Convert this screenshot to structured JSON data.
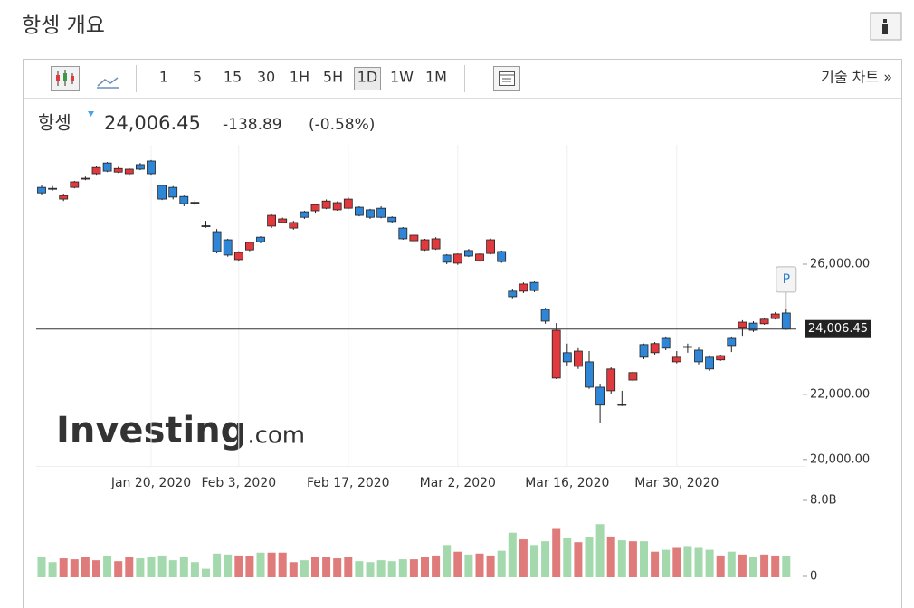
{
  "page": {
    "title": "항셍 개요",
    "toolbar": {
      "intervals": [
        "1",
        "5",
        "15",
        "30",
        "1H",
        "5H",
        "1D",
        "1W",
        "1M"
      ],
      "selected_interval": "1D",
      "tech_chart_link": "기술 차트 »"
    },
    "header": {
      "name": "항셍",
      "change": "-138.89",
      "change_percent": "(-0.58%)"
    },
    "watermark": {
      "brand": "Investing",
      "suffix": ".com"
    },
    "marker": "P"
  },
  "chart_data": {
    "type": "candlestick",
    "categories": [
      null,
      null,
      null,
      null,
      null,
      null,
      null,
      null,
      null,
      null,
      "Jan 20, 2020",
      null,
      null,
      null,
      null,
      null,
      null,
      null,
      "Feb 3, 2020",
      null,
      null,
      null,
      null,
      null,
      null,
      null,
      null,
      null,
      "Feb 17, 2020",
      null,
      null,
      null,
      null,
      null,
      null,
      null,
      null,
      null,
      "Mar 2, 2020",
      null,
      null,
      null,
      null,
      null,
      null,
      null,
      null,
      null,
      "Mar 16, 2020",
      null,
      null,
      null,
      null,
      null,
      null,
      null,
      null,
      null,
      "Mar 30, 2020",
      null,
      null,
      null,
      null,
      null,
      null,
      null,
      null,
      null,
      null
    ],
    "open": [
      28360,
      28330,
      28000,
      28360,
      28620,
      28780,
      29110,
      28830,
      28780,
      29060,
      29170,
      28420,
      28360,
      28080,
      27900,
      27180,
      27000,
      26750,
      26140,
      26440,
      26830,
      27170,
      27280,
      27110,
      27610,
      27640,
      27720,
      27670,
      27720,
      27750,
      27670,
      27720,
      27440,
      27110,
      26720,
      26440,
      26470,
      26280,
      26030,
      26420,
      26110,
      26330,
      26390,
      25170,
      25170,
      25440,
      24610,
      22500,
      23280,
      22860,
      23000,
      22220,
      22110,
      21690,
      22440,
      23530,
      23280,
      23720,
      23000,
      23470,
      23360,
      23140,
      23060,
      23720,
      24060,
      24190,
      24170,
      24330,
      24500
    ],
    "high": [
      28420,
      28400,
      28170,
      28560,
      28690,
      29030,
      29140,
      28990,
      28950,
      29110,
      29200,
      28440,
      28400,
      28110,
      27990,
      27330,
      27080,
      26780,
      26400,
      26690,
      26860,
      27560,
      27430,
      27330,
      27640,
      27860,
      27990,
      27930,
      28060,
      27780,
      27700,
      27780,
      27470,
      27140,
      26920,
      26780,
      26830,
      26310,
      26330,
      26470,
      26330,
      26790,
      26420,
      25250,
      25440,
      25470,
      24660,
      24190,
      23560,
      23420,
      23330,
      22330,
      22830,
      22110,
      22720,
      23560,
      23610,
      23780,
      23330,
      23560,
      23440,
      23200,
      23220,
      23780,
      24280,
      24250,
      24360,
      24530,
      24640
    ],
    "low": [
      28140,
      28260,
      27940,
      28330,
      28580,
      28750,
      28830,
      28800,
      28740,
      28890,
      28750,
      27970,
      27990,
      27780,
      27800,
      27120,
      26330,
      26230,
      26080,
      26400,
      26640,
      27110,
      27250,
      27060,
      27390,
      27580,
      27690,
      27640,
      27690,
      27470,
      27390,
      27410,
      27250,
      26750,
      26690,
      26410,
      26440,
      26000,
      25980,
      26220,
      26080,
      26300,
      26040,
      24950,
      25110,
      25140,
      24170,
      22470,
      22890,
      22780,
      22170,
      21110,
      22000,
      21640,
      22390,
      23080,
      23220,
      23360,
      22950,
      23280,
      22920,
      22720,
      23030,
      23300,
      23800,
      23920,
      24140,
      24300,
      23980
    ],
    "close": [
      28190,
      28320,
      28110,
      28530,
      28640,
      28970,
      28860,
      28940,
      28920,
      28920,
      28780,
      28000,
      28060,
      27860,
      27880,
      27160,
      26390,
      26280,
      26360,
      26670,
      26690,
      27500,
      27390,
      27280,
      27440,
      27830,
      27940,
      27890,
      28000,
      27500,
      27440,
      27440,
      27310,
      26780,
      26890,
      26750,
      26780,
      26060,
      26310,
      26250,
      26310,
      26750,
      26080,
      25000,
      25390,
      25190,
      24250,
      23970,
      23000,
      23330,
      22220,
      21670,
      22780,
      21670,
      22670,
      23140,
      23560,
      23420,
      23140,
      23450,
      23000,
      22780,
      23190,
      23500,
      24220,
      23970,
      24310,
      24470,
      24006.45
    ],
    "up_color": "#e03a3e",
    "down_color": "#2f86d6",
    "ylim": [
      19800,
      29670
    ],
    "yticks": [
      {
        "value": 26000,
        "label": "26,000.00"
      },
      {
        "value": 22000,
        "label": "22,000.00"
      },
      {
        "value": 20000,
        "label": "20,000.00"
      }
    ],
    "current_price": {
      "value": 24006.45,
      "label": "24,006.45"
    },
    "grid": true,
    "volume": {
      "values": [
        2.0,
        1.5,
        1.9,
        1.8,
        2.0,
        1.7,
        2.1,
        1.6,
        2.0,
        1.9,
        2.0,
        2.2,
        1.7,
        2.0,
        1.5,
        0.8,
        2.4,
        2.3,
        2.2,
        2.1,
        2.5,
        2.5,
        2.5,
        1.5,
        1.7,
        2.0,
        2.0,
        1.9,
        2.0,
        1.6,
        1.5,
        1.7,
        1.6,
        1.8,
        1.8,
        2.0,
        2.2,
        3.3,
        2.6,
        2.3,
        2.4,
        2.2,
        2.7,
        4.6,
        3.9,
        3.3,
        3.7,
        5.0,
        4.0,
        3.6,
        4.1,
        5.5,
        4.2,
        3.8,
        3.7,
        3.7,
        2.6,
        2.8,
        3.0,
        3.1,
        3.0,
        2.8,
        2.2,
        2.6,
        2.3,
        2.0,
        2.3,
        2.2,
        2.1
      ],
      "ylim": [
        0,
        8
      ],
      "yticks": [
        {
          "value": 8,
          "label": "8.0B"
        },
        0
      ],
      "up_color": "#e07b7b",
      "down_color": "#a3d9ad"
    }
  }
}
